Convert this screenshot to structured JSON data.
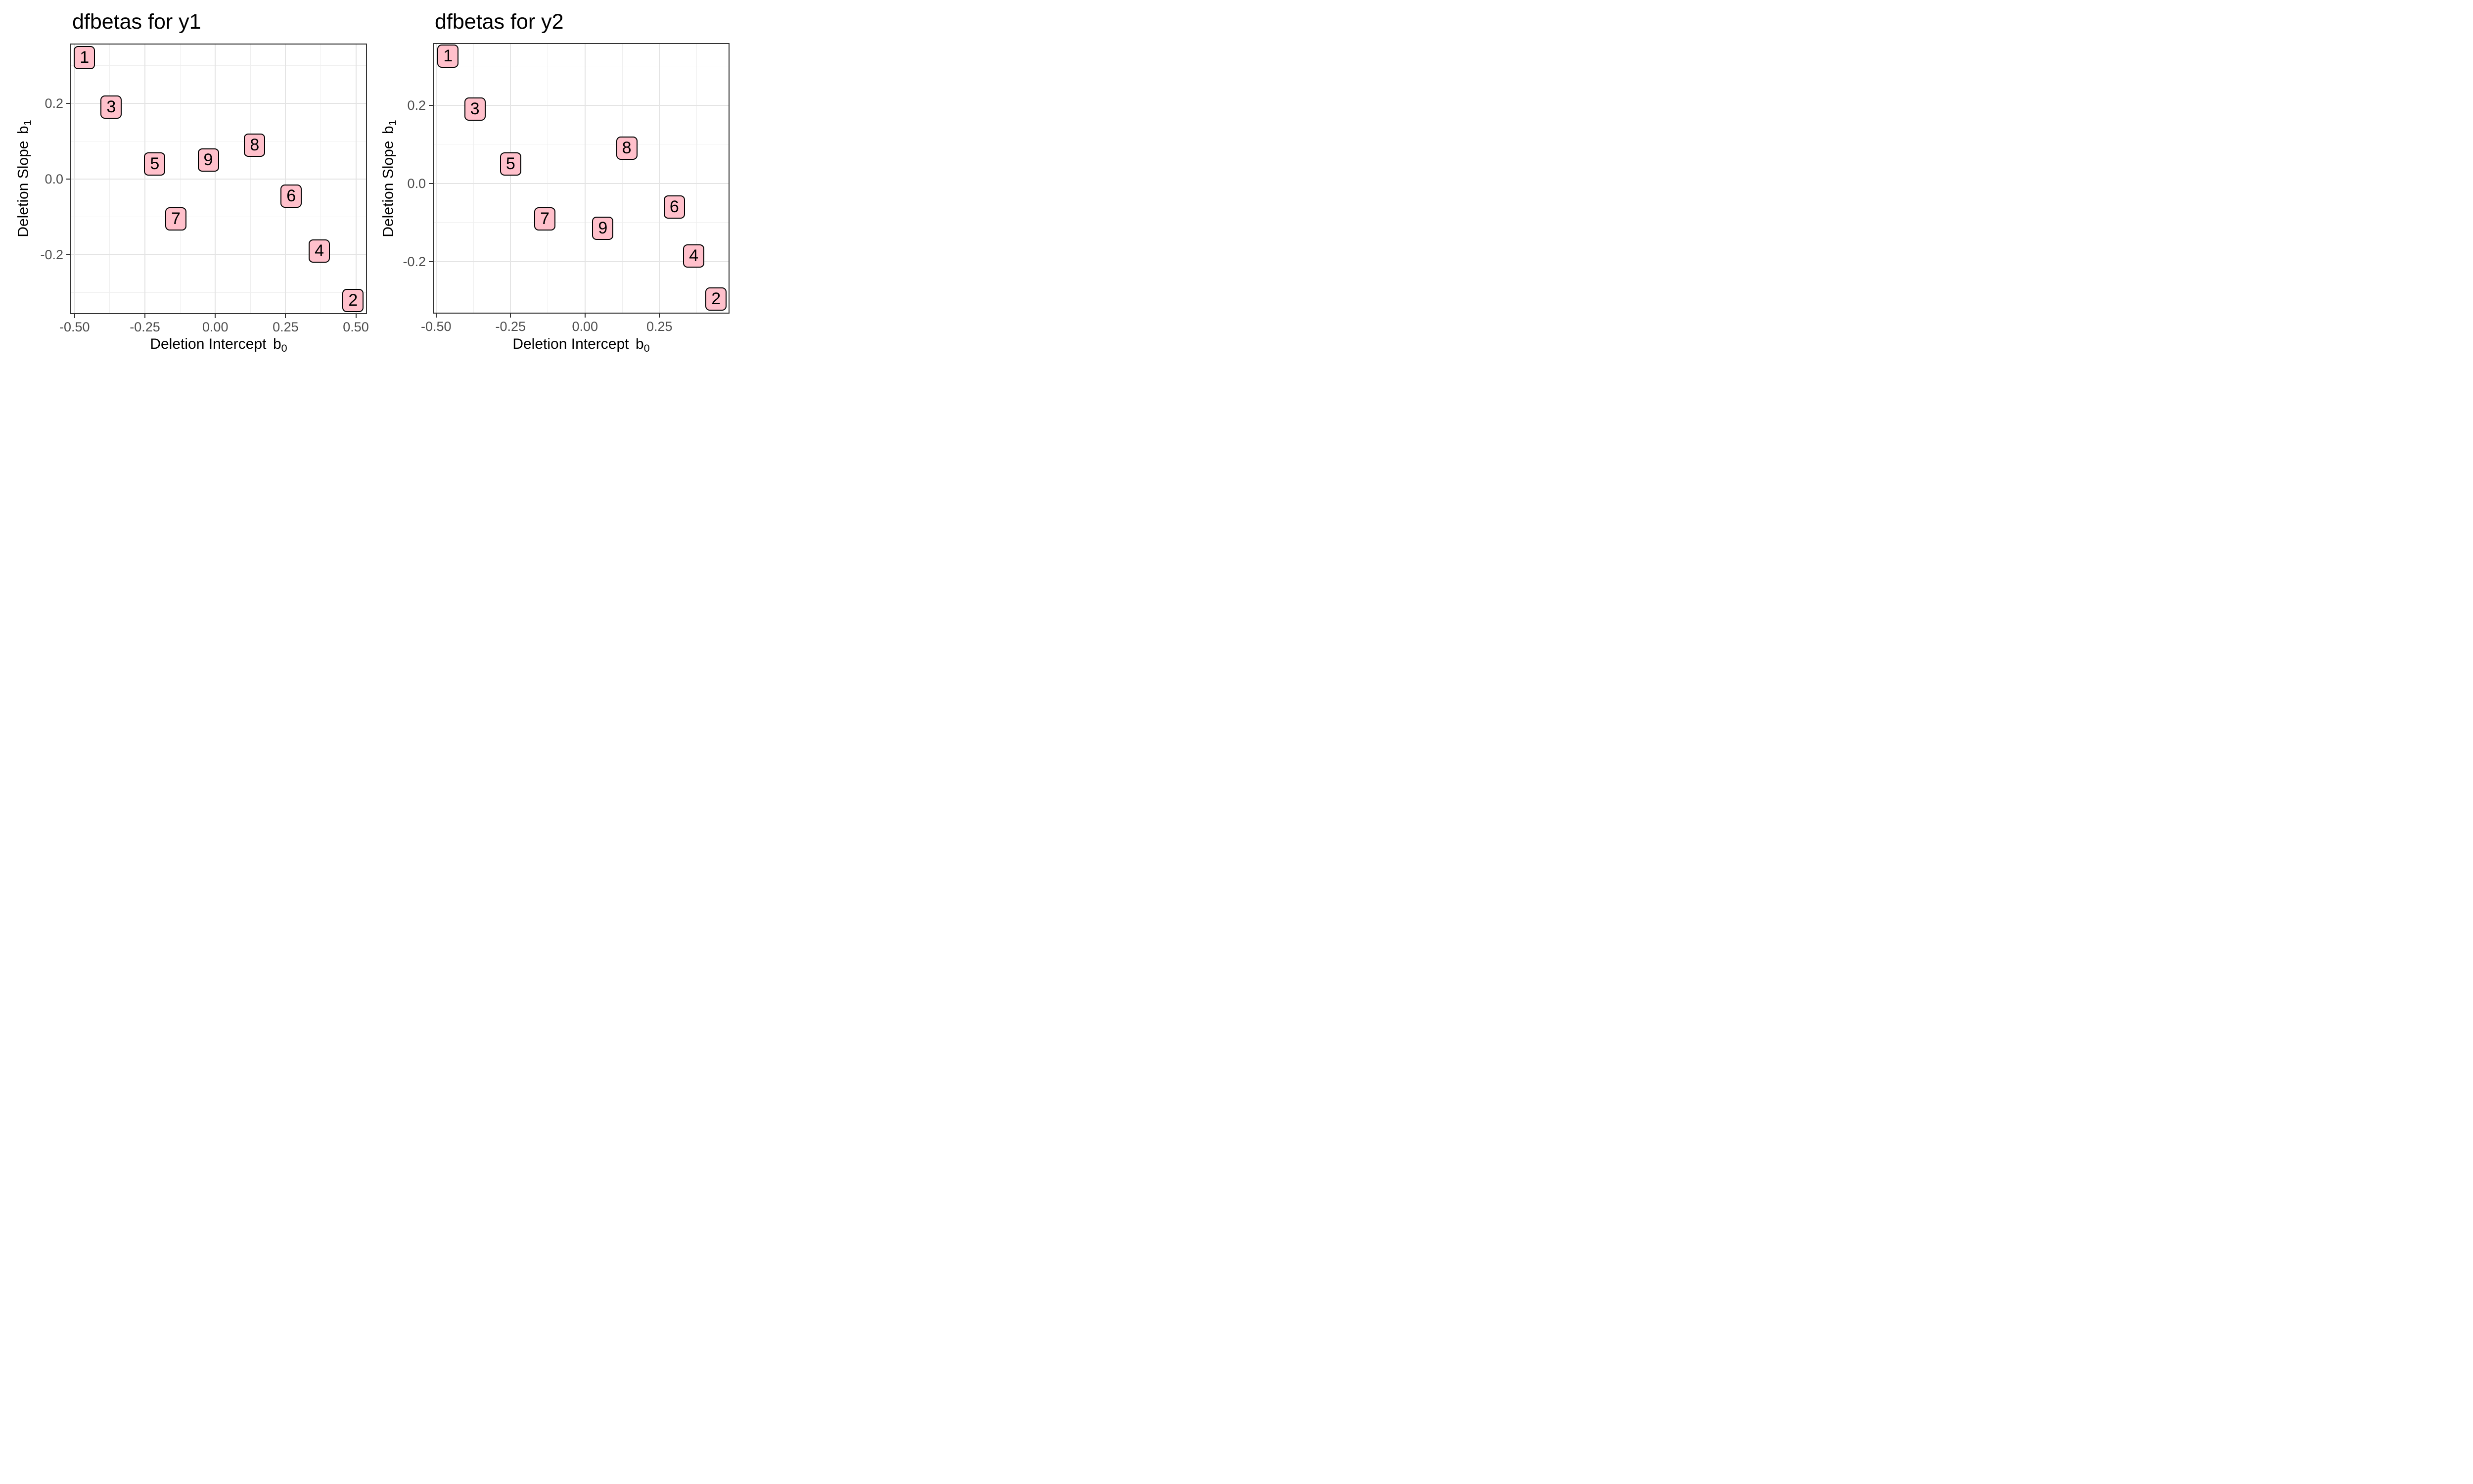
{
  "page": {
    "background": "#FFFFFF"
  },
  "chart_data": [
    {
      "type": "scatter",
      "title": "dfbetas for y1",
      "xlabel": "Deletion Intercept b0",
      "ylabel": "Deletion Slope b1",
      "xlabel_parts": {
        "prefix": "Deletion Intercept",
        "var": "b",
        "sub": "0"
      },
      "ylabel_parts": {
        "prefix": "Deletion Slope",
        "var": "b",
        "sub": "1"
      },
      "xlim": [
        -0.512,
        0.536
      ],
      "ylim": [
        -0.354,
        0.355
      ],
      "xticks": [
        {
          "value": -0.5,
          "label": "-0.50"
        },
        {
          "value": -0.25,
          "label": "-0.25"
        },
        {
          "value": 0.0,
          "label": "0.00"
        },
        {
          "value": 0.25,
          "label": "0.25"
        },
        {
          "value": 0.5,
          "label": "0.50"
        }
      ],
      "yticks": [
        {
          "value": 0.2,
          "label": "0.2"
        },
        {
          "value": 0.0,
          "label": "0.0"
        },
        {
          "value": -0.2,
          "label": "-0.2"
        }
      ],
      "xminor": [
        -0.375,
        -0.125,
        0.125,
        0.375
      ],
      "yminor": [
        0.3,
        0.1,
        -0.1,
        -0.3
      ],
      "grid": true,
      "legend": "none",
      "panel_border": true,
      "marker": {
        "style": "rounded-label-box",
        "fill": "#FFC0CB",
        "stroke": "#000000",
        "text_color": "#000000"
      },
      "points": [
        {
          "label": "1",
          "x": -0.465,
          "y": 0.32
        },
        {
          "label": "2",
          "x": 0.49,
          "y": -0.32
        },
        {
          "label": "3",
          "x": -0.37,
          "y": 0.19
        },
        {
          "label": "4",
          "x": 0.37,
          "y": -0.19
        },
        {
          "label": "5",
          "x": -0.215,
          "y": 0.04
        },
        {
          "label": "6",
          "x": 0.27,
          "y": -0.045
        },
        {
          "label": "7",
          "x": -0.14,
          "y": -0.105
        },
        {
          "label": "8",
          "x": 0.14,
          "y": 0.09
        },
        {
          "label": "9",
          "x": -0.025,
          "y": 0.05
        }
      ]
    },
    {
      "type": "scatter",
      "title": "dfbetas for y2",
      "xlabel": "Deletion Intercept b0",
      "ylabel": "Deletion Slope b1",
      "xlabel_parts": {
        "prefix": "Deletion Intercept",
        "var": "b",
        "sub": "0"
      },
      "ylabel_parts": {
        "prefix": "Deletion Slope",
        "var": "b",
        "sub": "1"
      },
      "xlim": [
        -0.508,
        0.482
      ],
      "ylim": [
        -0.33,
        0.356
      ],
      "xticks": [
        {
          "value": -0.5,
          "label": "-0.50"
        },
        {
          "value": -0.25,
          "label": "-0.25"
        },
        {
          "value": 0.0,
          "label": "0.00"
        },
        {
          "value": 0.25,
          "label": "0.25"
        }
      ],
      "yticks": [
        {
          "value": 0.2,
          "label": "0.2"
        },
        {
          "value": 0.0,
          "label": "0.0"
        },
        {
          "value": -0.2,
          "label": "-0.2"
        }
      ],
      "xminor": [
        -0.375,
        -0.125,
        0.125,
        0.375
      ],
      "yminor": [
        0.3,
        0.1,
        -0.1,
        -0.3
      ],
      "grid": true,
      "legend": "none",
      "panel_border": true,
      "marker": {
        "style": "rounded-label-box",
        "fill": "#FFC0CB",
        "stroke": "#000000",
        "text_color": "#000000"
      },
      "points": [
        {
          "label": "1",
          "x": -0.46,
          "y": 0.325
        },
        {
          "label": "2",
          "x": 0.44,
          "y": -0.295
        },
        {
          "label": "3",
          "x": -0.37,
          "y": 0.19
        },
        {
          "label": "4",
          "x": 0.365,
          "y": -0.185
        },
        {
          "label": "5",
          "x": -0.25,
          "y": 0.05
        },
        {
          "label": "6",
          "x": 0.3,
          "y": -0.06
        },
        {
          "label": "7",
          "x": -0.135,
          "y": -0.09
        },
        {
          "label": "8",
          "x": 0.14,
          "y": 0.09
        },
        {
          "label": "9",
          "x": 0.06,
          "y": -0.115
        }
      ]
    }
  ]
}
